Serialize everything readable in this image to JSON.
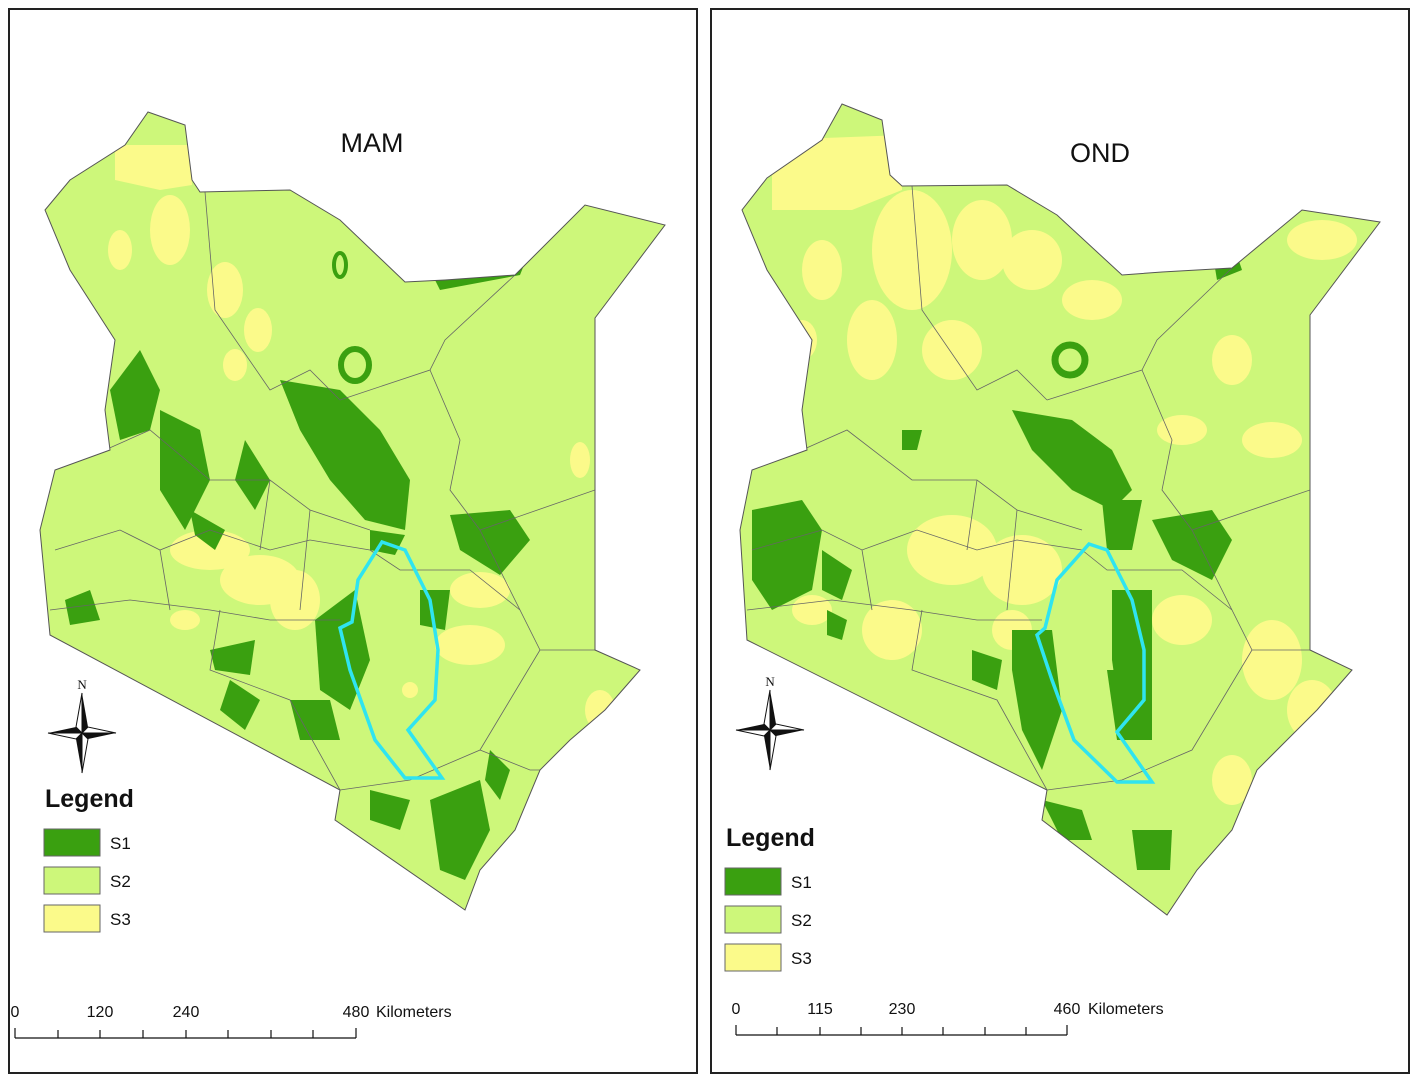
{
  "colors": {
    "S1": "#3aa010",
    "S2": "#cdf77a",
    "S3": "#fbfa8a",
    "boundary": "#2fe4f0",
    "outline": "#555555"
  },
  "maps": [
    {
      "title": "MAM",
      "north": "N",
      "legend": {
        "title": "Legend",
        "items": [
          {
            "key": "S1",
            "label": "S1"
          },
          {
            "key": "S2",
            "label": "S2"
          },
          {
            "key": "S3",
            "label": "S3"
          }
        ]
      },
      "scale": {
        "ticks": [
          "0",
          "120",
          "240",
          "480"
        ],
        "unit": "Kilometers"
      }
    },
    {
      "title": "OND",
      "north": "N",
      "legend": {
        "title": "Legend",
        "items": [
          {
            "key": "S1",
            "label": "S1"
          },
          {
            "key": "S2",
            "label": "S2"
          },
          {
            "key": "S3",
            "label": "S3"
          }
        ]
      },
      "scale": {
        "ticks": [
          "0",
          "115",
          "230",
          "460"
        ],
        "unit": "Kilometers"
      }
    }
  ]
}
